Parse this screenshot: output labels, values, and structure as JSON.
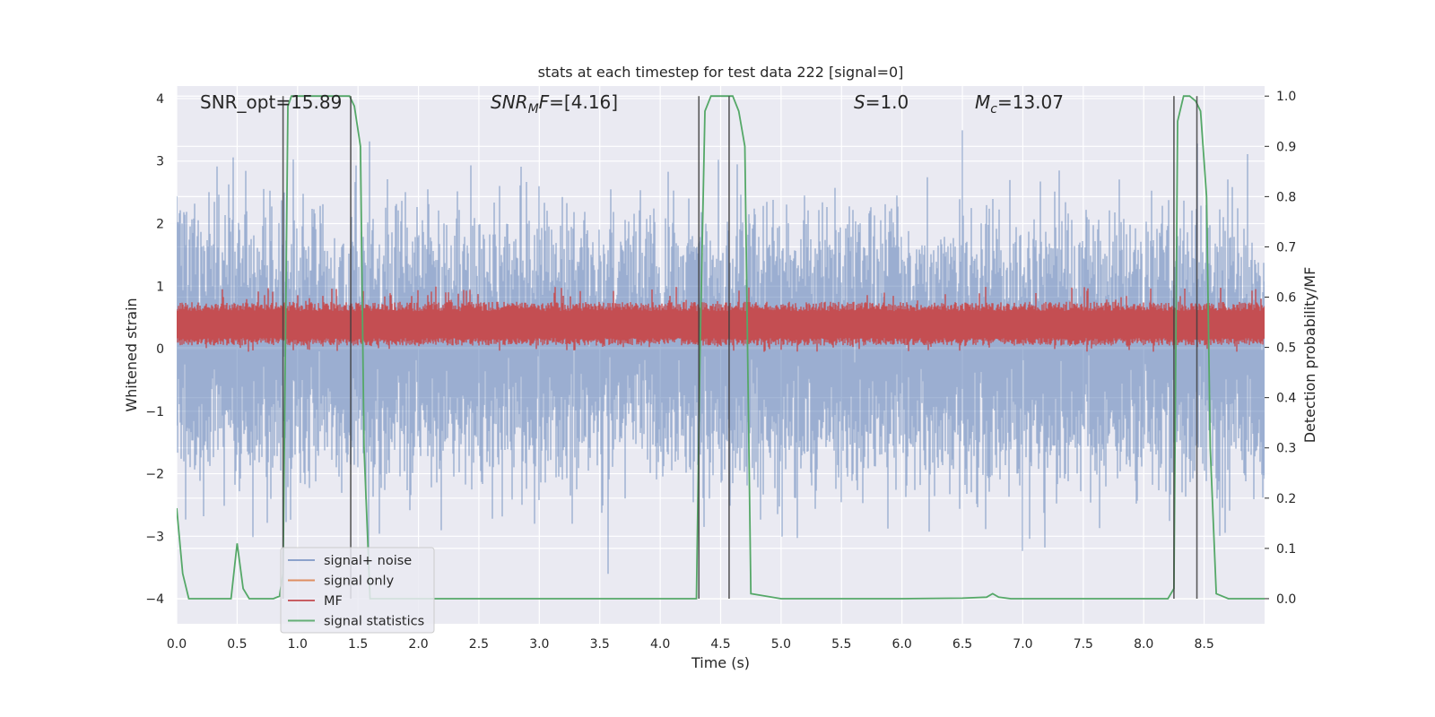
{
  "chart_data": {
    "type": "line",
    "title": "stats at each timestep for test data 222 [signal=0]",
    "xlabel": "Time (s)",
    "ylabel_left": "Whitened strain",
    "ylabel_right": "Detection probability/MF",
    "xlim": [
      0.0,
      9.0
    ],
    "ylim_left": [
      -4.4,
      4.2
    ],
    "ylim_right": [
      -0.05,
      1.02
    ],
    "x_ticks": [
      "0.0",
      "0.5",
      "1.0",
      "1.5",
      "2.0",
      "2.5",
      "3.0",
      "3.5",
      "4.0",
      "4.5",
      "5.0",
      "5.5",
      "6.0",
      "6.5",
      "7.0",
      "7.5",
      "8.0",
      "8.5"
    ],
    "y_ticks_left": [
      "−4",
      "−3",
      "−2",
      "−1",
      "0",
      "1",
      "2",
      "3",
      "4"
    ],
    "y_ticks_right": [
      "0.0",
      "0.1",
      "0.2",
      "0.3",
      "0.4",
      "0.5",
      "0.6",
      "0.7",
      "0.8",
      "0.9",
      "1.0"
    ],
    "grid": true,
    "background": "#eaeaf2",
    "annotations": [
      {
        "kind": "plain",
        "text": "SNR_opt=15.89"
      },
      {
        "kind": "mf",
        "main": "SNR",
        "sub": "M",
        "rest": "F=[4.16]"
      },
      {
        "kind": "italic-var",
        "var": "S",
        "rest": "=1.0"
      },
      {
        "kind": "mc",
        "var": "M",
        "sub": "c",
        "rest": "=13.07"
      }
    ],
    "series": [
      {
        "name": "signal+ noise",
        "color": "#4c72b0",
        "axis": "left",
        "style": "noise",
        "sigma": 0.95,
        "spike_range": [
          -3.6,
          3.6
        ]
      },
      {
        "name": "signal only",
        "color": "#dd8452",
        "axis": "left",
        "x": [
          0.0,
          9.0
        ],
        "y": [
          0.0,
          0.0
        ]
      },
      {
        "name": "MF",
        "color": "#c44e52",
        "axis": "left",
        "style": "band",
        "center": 0.3,
        "band_range": [
          0.05,
          0.75
        ],
        "spike_range": [
          -0.05,
          1.0
        ]
      },
      {
        "name": "signal statistics",
        "color": "#55a868",
        "axis": "right",
        "x": [
          0.0,
          0.05,
          0.1,
          0.2,
          0.3,
          0.4,
          0.45,
          0.5,
          0.55,
          0.6,
          0.7,
          0.8,
          0.85,
          0.88,
          0.92,
          0.95,
          1.0,
          1.1,
          1.2,
          1.3,
          1.4,
          1.43,
          1.47,
          1.52,
          1.55,
          1.6,
          1.8,
          2.0,
          2.5,
          3.0,
          3.5,
          4.0,
          4.3,
          4.33,
          4.37,
          4.42,
          4.5,
          4.6,
          4.65,
          4.7,
          4.75,
          5.0,
          5.5,
          6.0,
          6.5,
          6.7,
          6.75,
          6.8,
          6.9,
          7.0,
          7.5,
          8.0,
          8.2,
          8.25,
          8.28,
          8.33,
          8.38,
          8.43,
          8.47,
          8.52,
          8.55,
          8.6,
          8.7,
          9.0
        ],
        "y": [
          0.18,
          0.05,
          0.0,
          0.0,
          0.0,
          0.0,
          0.0,
          0.11,
          0.02,
          0.0,
          0.0,
          0.0,
          0.005,
          0.05,
          0.98,
          1.0,
          1.0,
          1.0,
          1.0,
          1.0,
          1.0,
          1.0,
          0.98,
          0.9,
          0.3,
          0.0,
          0.0,
          0.0,
          0.0,
          0.0,
          0.0,
          0.0,
          0.0,
          0.5,
          0.97,
          1.0,
          1.0,
          1.0,
          0.97,
          0.9,
          0.01,
          0.0,
          0.0,
          0.0,
          0.001,
          0.003,
          0.01,
          0.003,
          0.0,
          0.0,
          0.0,
          0.0,
          0.0,
          0.02,
          0.95,
          1.0,
          1.0,
          0.99,
          0.97,
          0.8,
          0.3,
          0.01,
          0.0,
          0.0
        ]
      }
    ],
    "detection_markers": [
      {
        "x": 0.88,
        "x_end": 1.44
      },
      {
        "x": 4.32,
        "x_end": 4.57
      },
      {
        "x": 8.25,
        "x_end": 8.44
      }
    ],
    "legend_location": "lower-left"
  }
}
